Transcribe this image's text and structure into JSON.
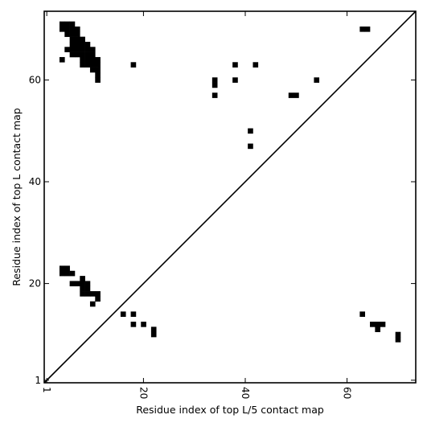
{
  "chart_data": {
    "type": "heatmap",
    "title": "",
    "xlabel": "Residue index of top L/5 contact map",
    "ylabel": "Residue index of top L contact map",
    "xlim": [
      0.5,
      73.5
    ],
    "ylim": [
      0.5,
      73.5
    ],
    "xticks": [
      1,
      20,
      40,
      60
    ],
    "yticks": [
      1,
      20,
      40,
      60
    ],
    "x_tick_labels": [
      "1",
      "20",
      "40",
      "60"
    ],
    "y_tick_labels": [
      "1",
      "20",
      "40",
      "60"
    ],
    "diagonal_line": true,
    "cell_color": "#000000",
    "upper_cells": [
      [
        4,
        71
      ],
      [
        5,
        71
      ],
      [
        6,
        71
      ],
      [
        4,
        70
      ],
      [
        5,
        70
      ],
      [
        6,
        70
      ],
      [
        7,
        70
      ],
      [
        5,
        69
      ],
      [
        6,
        69
      ],
      [
        7,
        69
      ],
      [
        6,
        68
      ],
      [
        7,
        68
      ],
      [
        8,
        68
      ],
      [
        6,
        67
      ],
      [
        7,
        67
      ],
      [
        8,
        67
      ],
      [
        9,
        67
      ],
      [
        5,
        66
      ],
      [
        6,
        66
      ],
      [
        7,
        66
      ],
      [
        8,
        66
      ],
      [
        9,
        66
      ],
      [
        10,
        66
      ],
      [
        6,
        65
      ],
      [
        7,
        65
      ],
      [
        8,
        65
      ],
      [
        9,
        65
      ],
      [
        10,
        65
      ],
      [
        4,
        64
      ],
      [
        8,
        64
      ],
      [
        9,
        64
      ],
      [
        10,
        64
      ],
      [
        11,
        64
      ],
      [
        8,
        63
      ],
      [
        9,
        63
      ],
      [
        10,
        63
      ],
      [
        11,
        63
      ],
      [
        18,
        63
      ],
      [
        38,
        63
      ],
      [
        42,
        63
      ],
      [
        10,
        62
      ],
      [
        11,
        62
      ],
      [
        11,
        61
      ],
      [
        11,
        60
      ],
      [
        34,
        60
      ],
      [
        38,
        60
      ],
      [
        54,
        60
      ],
      [
        34,
        59
      ],
      [
        34,
        57
      ],
      [
        49,
        57
      ],
      [
        50,
        57
      ],
      [
        41,
        50
      ],
      [
        41,
        47
      ],
      [
        63,
        70
      ],
      [
        64,
        70
      ]
    ],
    "lower_cells": [
      [
        4,
        23
      ],
      [
        5,
        23
      ],
      [
        4,
        22
      ],
      [
        5,
        22
      ],
      [
        6,
        22
      ],
      [
        8,
        21
      ],
      [
        6,
        20
      ],
      [
        7,
        20
      ],
      [
        8,
        20
      ],
      [
        9,
        20
      ],
      [
        8,
        19
      ],
      [
        9,
        19
      ],
      [
        8,
        18
      ],
      [
        9,
        18
      ],
      [
        10,
        18
      ],
      [
        11,
        18
      ],
      [
        11,
        17
      ],
      [
        10,
        16
      ],
      [
        16,
        14
      ],
      [
        18,
        14
      ],
      [
        63,
        14
      ],
      [
        18,
        12
      ],
      [
        20,
        12
      ],
      [
        65,
        12
      ],
      [
        66,
        12
      ],
      [
        67,
        12
      ],
      [
        22,
        11
      ],
      [
        66,
        11
      ],
      [
        22,
        10
      ],
      [
        70,
        10
      ],
      [
        70,
        9
      ]
    ]
  }
}
